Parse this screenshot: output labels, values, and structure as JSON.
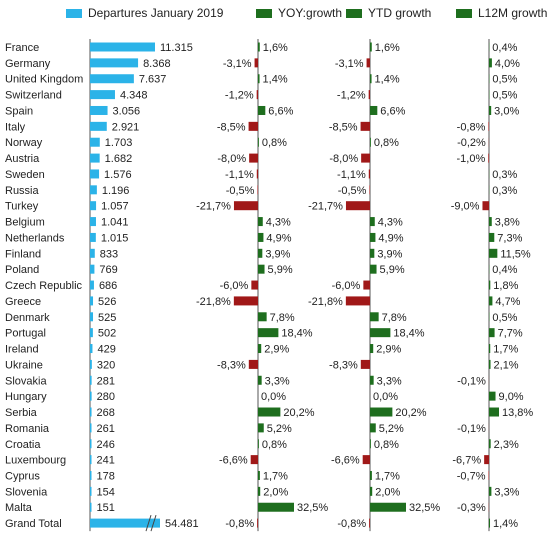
{
  "chart_data": {
    "type": "bar",
    "legend": [
      {
        "label": "Departures January 2019",
        "color": "#2bb3e8"
      },
      {
        "label": "YOY:growth",
        "color": "#1e6e1e"
      },
      {
        "label": "YTD growth",
        "color": "#1e6e1e"
      },
      {
        "label": "L12M growth",
        "color": "#1e6e1e"
      }
    ],
    "colors": {
      "departures": "#2bb3e8",
      "positive": "#1e6e1e",
      "negative": "#a01818",
      "axis": "#555555"
    },
    "categories": [
      "France",
      "Germany",
      "United Kingdom",
      "Switzerland",
      "Spain",
      "Italy",
      "Norway",
      "Austria",
      "Sweden",
      "Russia",
      "Turkey",
      "Belgium",
      "Netherlands",
      "Finland",
      "Poland",
      "Czech Republic",
      "Greece",
      "Denmark",
      "Portugal",
      "Ireland",
      "Ukraine",
      "Slovakia",
      "Hungary",
      "Serbia",
      "Romania",
      "Croatia",
      "Luxembourg",
      "Cyprus",
      "Slovenia",
      "Malta",
      "Grand Total"
    ],
    "departures": [
      11315,
      8368,
      7637,
      4348,
      3056,
      2921,
      1703,
      1682,
      1576,
      1196,
      1057,
      1041,
      1015,
      833,
      769,
      686,
      526,
      525,
      502,
      429,
      320,
      281,
      280,
      268,
      261,
      246,
      241,
      178,
      154,
      151,
      54481
    ],
    "departures_labels": [
      "11.315",
      "8.368",
      "7.637",
      "4.348",
      "3.056",
      "2.921",
      "1.703",
      "1.682",
      "1.576",
      "1.196",
      "1.057",
      "1.041",
      "1.015",
      "833",
      "769",
      "686",
      "526",
      "525",
      "502",
      "429",
      "320",
      "281",
      "280",
      "268",
      "261",
      "246",
      "241",
      "178",
      "154",
      "151",
      "54.481"
    ],
    "axis_break_last": true,
    "yoy": [
      1.6,
      -3.1,
      1.4,
      -1.2,
      6.6,
      -8.5,
      0.8,
      -8.0,
      -1.1,
      -0.5,
      -21.7,
      4.3,
      4.9,
      3.9,
      5.9,
      -6.0,
      -21.8,
      7.8,
      18.4,
      2.9,
      -8.3,
      3.3,
      0.0,
      20.2,
      5.2,
      0.8,
      -6.6,
      1.7,
      2.0,
      32.5,
      -0.8
    ],
    "yoy_labels": [
      "1,6%",
      "-3,1%",
      "1,4%",
      "-1,2%",
      "6,6%",
      "-8,5%",
      "0,8%",
      "-8,0%",
      "-1,1%",
      "-0,5%",
      "-21,7%",
      "4,3%",
      "4,9%",
      "3,9%",
      "5,9%",
      "-6,0%",
      "-21,8%",
      "7,8%",
      "18,4%",
      "2,9%",
      "-8,3%",
      "3,3%",
      "0,0%",
      "20,2%",
      "5,2%",
      "0,8%",
      "-6,6%",
      "1,7%",
      "2,0%",
      "32,5%",
      "-0,8%"
    ],
    "ytd": [
      1.6,
      -3.1,
      1.4,
      -1.2,
      6.6,
      -8.5,
      0.8,
      -8.0,
      -1.1,
      -0.5,
      -21.7,
      4.3,
      4.9,
      3.9,
      5.9,
      -6.0,
      -21.8,
      7.8,
      18.4,
      2.9,
      -8.3,
      3.3,
      0.0,
      20.2,
      5.2,
      0.8,
      -6.6,
      1.7,
      2.0,
      32.5,
      -0.8
    ],
    "ytd_labels": [
      "1,6%",
      "-3,1%",
      "1,4%",
      "-1,2%",
      "6,6%",
      "-8,5%",
      "0,8%",
      "-8,0%",
      "-1,1%",
      "-0,5%",
      "-21,7%",
      "4,3%",
      "4,9%",
      "3,9%",
      "5,9%",
      "-6,0%",
      "-21,8%",
      "7,8%",
      "18,4%",
      "2,9%",
      "-8,3%",
      "3,3%",
      "0,0%",
      "20,2%",
      "5,2%",
      "0,8%",
      "-6,6%",
      "1,7%",
      "2,0%",
      "32,5%",
      "-0,8%"
    ],
    "l12m": [
      0.4,
      4.0,
      0.5,
      0.5,
      3.0,
      -0.8,
      -0.2,
      -1.0,
      0.3,
      0.3,
      -9.0,
      3.8,
      7.3,
      11.5,
      0.4,
      1.8,
      4.7,
      0.5,
      7.7,
      1.7,
      2.1,
      -0.1,
      9.0,
      13.8,
      -0.1,
      2.3,
      -6.7,
      -0.7,
      3.3,
      -0.3,
      1.4
    ],
    "l12m_labels": [
      "0,4%",
      "4,0%",
      "0,5%",
      "0,5%",
      "3,0%",
      "-0,8%",
      "-0,2%",
      "-1,0%",
      "0,3%",
      "0,3%",
      "-9,0%",
      "3,8%",
      "7,3%",
      "11,5%",
      "0,4%",
      "1,8%",
      "4,7%",
      "0,5%",
      "7,7%",
      "1,7%",
      "2,1%",
      "-0,1%",
      "9,0%",
      "13,8%",
      "-0,1%",
      "2,3%",
      "-6,7%",
      "-0,7%",
      "3,3%",
      "-0,3%",
      "1,4%"
    ]
  }
}
